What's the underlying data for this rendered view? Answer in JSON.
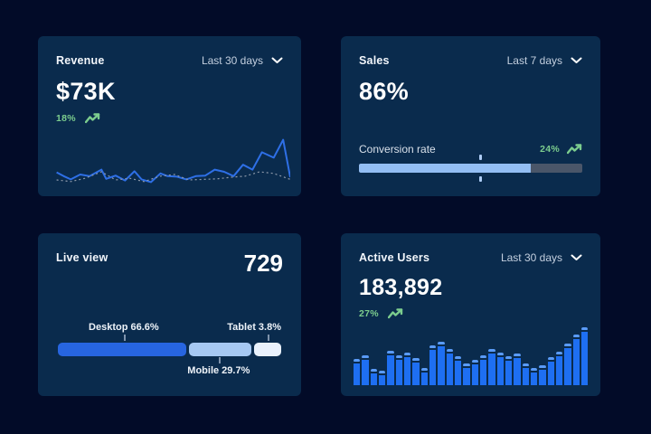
{
  "page": {
    "background": "#020b28",
    "card_background": "#0a2b4d"
  },
  "colors": {
    "accent_green": "#7ccd8e",
    "line_blue": "#2e6fe6",
    "line_dotted_gray": "#8e9aab",
    "bar_blue": "#1e6ff2",
    "bar_cap_blue": "#5a9bf7",
    "progress_fill": "#93bef3",
    "progress_track": "#4a5669",
    "segment_desktop": "#2765e0",
    "segment_mobile": "#a6c8f2",
    "segment_tablet": "#e9f1fc"
  },
  "cards": {
    "revenue": {
      "title": "Revenue",
      "period": "Last 30 days",
      "value": "$73K",
      "delta": "18%",
      "trend_icon": "trend-up-icon",
      "period_icon": "chevron-down-icon"
    },
    "sales": {
      "title": "Sales",
      "period": "Last 7 days",
      "value": "86%",
      "metric_label": "Conversion rate",
      "delta": "24%",
      "trend_icon": "trend-up-icon",
      "period_icon": "chevron-down-icon"
    },
    "live_view": {
      "title": "Live view",
      "value": "729",
      "label_desktop": "Desktop 66.6%",
      "label_mobile": "Mobile 29.7%",
      "label_tablet": "Tablet 3.8%"
    },
    "active_users": {
      "title": "Active Users",
      "period": "Last 30 days",
      "value": "183,892",
      "delta": "27%",
      "trend_icon": "trend-up-icon",
      "period_icon": "chevron-down-icon"
    }
  },
  "chart_data": [
    {
      "card": "revenue",
      "type": "line",
      "title": "Revenue last 30 days",
      "ylim": [
        0,
        100
      ],
      "grid": false,
      "series": [
        {
          "name": "current",
          "style": "solid",
          "color": "#2e6fe6",
          "points": [
            [
              1,
              24
            ],
            [
              4,
              17
            ],
            [
              7,
              11
            ],
            [
              11,
              20
            ],
            [
              15,
              17
            ],
            [
              20,
              29
            ],
            [
              22,
              12
            ],
            [
              26,
              18
            ],
            [
              30,
              9
            ],
            [
              34,
              26
            ],
            [
              37,
              11
            ],
            [
              41,
              6
            ],
            [
              45,
              22
            ],
            [
              48,
              17
            ],
            [
              52,
              16
            ],
            [
              56,
              11
            ],
            [
              60,
              17
            ],
            [
              64,
              18
            ],
            [
              68,
              29
            ],
            [
              72,
              25
            ],
            [
              76,
              17
            ],
            [
              80,
              38
            ],
            [
              84,
              29
            ],
            [
              88,
              61
            ],
            [
              93,
              51
            ],
            [
              97,
              84
            ],
            [
              100,
              15
            ]
          ]
        },
        {
          "name": "previous",
          "style": "dotted",
          "color": "#8e9aab",
          "points": [
            [
              1,
              10
            ],
            [
              7,
              7
            ],
            [
              13,
              13
            ],
            [
              20,
              25
            ],
            [
              26,
              10
            ],
            [
              32,
              13
            ],
            [
              38,
              7
            ],
            [
              45,
              17
            ],
            [
              51,
              20
            ],
            [
              57,
              10
            ],
            [
              63,
              11
            ],
            [
              69,
              12
            ],
            [
              75,
              15
            ],
            [
              81,
              17
            ],
            [
              87,
              25
            ],
            [
              93,
              22
            ],
            [
              100,
              11
            ]
          ]
        }
      ]
    },
    {
      "card": "sales",
      "type": "progress",
      "title": "Conversion rate",
      "value_percent": 86,
      "fill_percent": 77,
      "marker_percent": 54
    },
    {
      "card": "live_view",
      "type": "stacked-bar",
      "title": "Live view device split",
      "segments": [
        {
          "name": "desktop",
          "label": "Desktop 66.6%",
          "value": 66.6,
          "display_percent": 57.5,
          "color": "#2765e0",
          "tick_percent": 29.5,
          "label_side": "top"
        },
        {
          "name": "mobile",
          "label": "Mobile 29.7%",
          "value": 29.7,
          "display_percent": 28.0,
          "color": "#a6c8f2",
          "tick_percent": 72.0,
          "label_side": "bottom"
        },
        {
          "name": "tablet",
          "label": "Tablet 3.8%",
          "value": 3.8,
          "display_percent": 12.3,
          "color": "#e9f1fc",
          "tick_percent": 94.0,
          "label_side": "top"
        }
      ],
      "total": "729"
    },
    {
      "card": "active_users",
      "type": "bar",
      "title": "Active users last 30 days",
      "ylim": [
        0,
        100
      ],
      "values": [
        45,
        52,
        28,
        25,
        60,
        52,
        57,
        47,
        30,
        68,
        75,
        62,
        50,
        38,
        44,
        52,
        63,
        57,
        50,
        55,
        38,
        30,
        34,
        48,
        58,
        72,
        88,
        100
      ]
    }
  ]
}
